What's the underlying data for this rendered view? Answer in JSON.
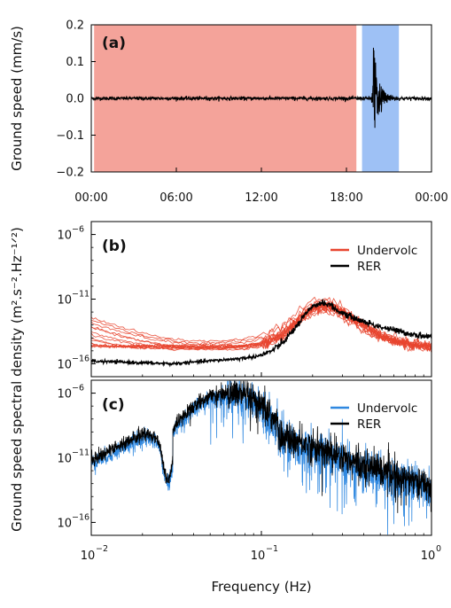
{
  "chart_data": [
    {
      "panel": "(a)",
      "type": "line",
      "ylabel": "Ground speed (mm/s)",
      "ylim": [
        -0.2,
        0.2
      ],
      "y_ticks": [
        "0.2",
        "0.1",
        "0.0",
        "−0.1",
        "−0.2"
      ],
      "x_ticks": [
        "00:00",
        "06:00",
        "12:00",
        "18:00",
        "00:00"
      ],
      "x_range_hours": [
        0,
        24
      ],
      "shaded_windows": [
        {
          "from_hour": 0.2,
          "to_hour": 18.7,
          "color": "#f4a39a"
        },
        {
          "from_hour": 19.1,
          "to_hour": 21.7,
          "color": "#9ec1f5"
        }
      ],
      "signal": {
        "color": "#000000",
        "event_hour": 19.9,
        "peak_mm_s": 0.15,
        "trough_mm_s": -0.08
      },
      "grid": false
    },
    {
      "panel": "(b)",
      "type": "line",
      "ylabel": "Ground speed spectral density (m².s⁻².Hz⁻¹ᐟ²)",
      "y_scale": "log",
      "ylim_exp": [
        -17,
        -5
      ],
      "y_ticks": [
        "10",
        "10",
        "10"
      ],
      "y_tick_exps": [
        "−6",
        "−11",
        "−16"
      ],
      "x_scale": "log",
      "xlim": [
        0.01,
        1
      ],
      "legend": [
        "Undervolc",
        "RER"
      ],
      "legend_position": "top-right",
      "series": [
        {
          "name": "Undervolc",
          "color": "#e8452f",
          "count": 12,
          "level_at_0_01": -13.5,
          "peak_freq": 0.23,
          "peak_level": -11.5,
          "level_at_1": -14.5
        },
        {
          "name": "RER",
          "color": "#000000",
          "level_at_0_01": -15.8,
          "min_freq": 0.03,
          "min_level": -16.0,
          "peak_freq": 0.23,
          "peak_level": -11.3,
          "level_at_1": -14.8
        }
      ],
      "grid": false
    },
    {
      "panel": "(c)",
      "type": "line",
      "y_scale": "log",
      "ylim_exp": [
        -17,
        -5
      ],
      "y_ticks": [
        "10",
        "10",
        "10"
      ],
      "y_tick_exps": [
        "−6",
        "−11",
        "−16"
      ],
      "x_scale": "log",
      "xlim": [
        0.01,
        1
      ],
      "x_ticks": [
        "10",
        "10",
        "10"
      ],
      "x_tick_exps": [
        "−2",
        "−1",
        "0"
      ],
      "xlabel": "Frequency (Hz)",
      "legend": [
        "Undervolc",
        "RER"
      ],
      "legend_position": "top-right",
      "series": [
        {
          "name": "Undervolc",
          "color": "#2f88e0",
          "peak_freq": 0.06,
          "peak_level": -5.6,
          "level_at_1": -15.5
        },
        {
          "name": "RER",
          "color": "#000000",
          "peak_freq": 0.06,
          "peak_level": -5.7,
          "level_at_1": -14.0
        }
      ],
      "grid": false
    }
  ]
}
